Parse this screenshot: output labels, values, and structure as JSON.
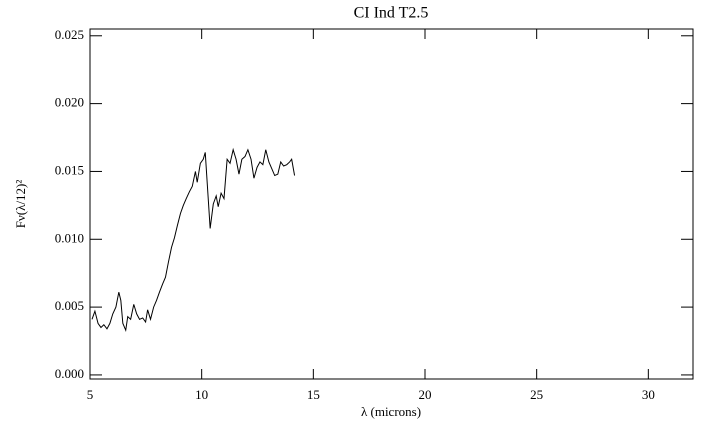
{
  "chart_data": {
    "type": "line",
    "title": "CI Ind T2.5",
    "x_label": "λ (microns)",
    "y_label": "Fν(λ/12)²",
    "xlim": [
      5,
      32
    ],
    "xticks": [
      5,
      10,
      15,
      20,
      25,
      30
    ],
    "ylim": [
      -0.0003,
      0.0255
    ],
    "yticks": [
      {
        "value": 0,
        "label": "0.000"
      },
      0.005,
      {
        "value": 0.01,
        "label": "0.010"
      },
      0.015,
      {
        "value": 0.02,
        "label": "0.020"
      },
      0.025
    ],
    "series": [
      {
        "color": "#000000",
        "x": [
          5.09,
          5.22,
          5.36,
          5.49,
          5.62,
          5.76,
          5.89,
          6.02,
          6.16,
          6.29,
          6.38,
          6.47,
          6.6,
          6.69,
          6.82,
          6.96,
          7.09,
          7.22,
          7.36,
          7.49,
          7.58,
          7.71,
          7.85,
          7.98,
          8.11,
          8.25,
          8.38,
          8.51,
          8.65,
          8.78,
          8.91,
          9.05,
          9.18,
          9.31,
          9.45,
          9.58,
          9.72,
          9.8,
          9.94,
          10.07,
          10.16,
          10.25,
          10.38,
          10.52,
          10.65,
          10.74,
          10.87,
          11.0,
          11.14,
          11.27,
          11.41,
          11.54,
          11.67,
          11.8,
          11.94,
          12.07,
          12.21,
          12.34,
          12.48,
          12.61,
          12.74,
          12.87,
          13.01,
          13.14,
          13.27,
          13.41,
          13.54,
          13.67,
          13.81,
          13.94,
          14.03,
          14.16
        ],
        "values": [
          0.0041,
          0.0047,
          0.0038,
          0.0035,
          0.0037,
          0.0034,
          0.0038,
          0.0045,
          0.005,
          0.0061,
          0.0055,
          0.0038,
          0.0033,
          0.0043,
          0.0041,
          0.0052,
          0.0045,
          0.0041,
          0.0042,
          0.0039,
          0.0048,
          0.0041,
          0.005,
          0.0055,
          0.0061,
          0.0067,
          0.0072,
          0.0083,
          0.0094,
          0.0101,
          0.011,
          0.0119,
          0.0125,
          0.013,
          0.0135,
          0.0139,
          0.015,
          0.0142,
          0.0156,
          0.0159,
          0.0164,
          0.0141,
          0.0108,
          0.0126,
          0.0132,
          0.0124,
          0.0134,
          0.013,
          0.0159,
          0.0156,
          0.0166,
          0.0159,
          0.0148,
          0.0159,
          0.0161,
          0.0166,
          0.0159,
          0.0145,
          0.0153,
          0.0157,
          0.0155,
          0.0166,
          0.0157,
          0.0152,
          0.0147,
          0.0148,
          0.0157,
          0.0154,
          0.0155,
          0.0157,
          0.0159,
          0.0147
        ]
      }
    ]
  }
}
